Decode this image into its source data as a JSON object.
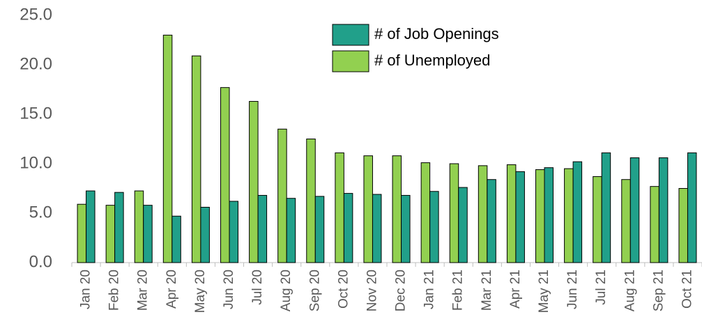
{
  "chart_data": {
    "type": "bar",
    "categories": [
      "Jan 20",
      "Feb 20",
      "Mar 20",
      "Apr 20",
      "May 20",
      "Jun 20",
      "Jul 20",
      "Aug 20",
      "Sep 20",
      "Oct 20",
      "Nov 20",
      "Dec 20",
      "Jan 21",
      "Feb 21",
      "Mar 21",
      "Apr 21",
      "May 21",
      "Jun 21",
      "Jul 21",
      "Aug 21",
      "Sep 21",
      "Oct 21"
    ],
    "series": [
      {
        "name": "# of Unemployed",
        "color": "#92d050",
        "values": [
          5.9,
          5.8,
          7.25,
          23.0,
          20.9,
          17.7,
          16.3,
          13.5,
          12.5,
          11.1,
          10.8,
          10.8,
          10.1,
          10.0,
          9.8,
          9.9,
          9.4,
          9.5,
          8.7,
          8.4,
          7.7,
          7.5
        ]
      },
      {
        "name": "# of Job Openings",
        "color": "#21a08a",
        "values": [
          7.25,
          7.1,
          5.8,
          4.7,
          5.6,
          6.2,
          6.8,
          6.5,
          6.7,
          7.0,
          6.9,
          6.8,
          7.2,
          7.6,
          8.4,
          9.2,
          9.6,
          10.2,
          11.1,
          10.6,
          10.6,
          11.1
        ]
      }
    ],
    "ylim": [
      0,
      25
    ],
    "yticks": [
      {
        "value": 0,
        "label": "0.0"
      },
      {
        "value": 5,
        "label": "5.0"
      },
      {
        "value": 10,
        "label": "10.0"
      },
      {
        "value": 15,
        "label": "15.0"
      },
      {
        "value": 20,
        "label": "20.0"
      },
      {
        "value": 25,
        "label": "25.0"
      }
    ],
    "legend": "top-right"
  }
}
